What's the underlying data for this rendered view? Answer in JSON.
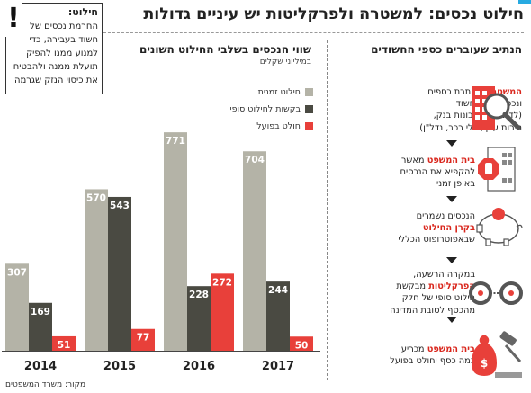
{
  "title": "חילוט נכסים: למשטרה ולפרקליטות יש עיניים גדולות",
  "note": {
    "label": "חילוט:",
    "text_lines": [
      "החרמת נכסים של",
      "חשוד בעבירה, כדי",
      "למנוע ממנו להפיק",
      "תועלת ממנה ולהבטיח",
      "את כיסוי הנזק שגרמה"
    ]
  },
  "flow": {
    "title": "הנתיב שעוברים כספי החשודים",
    "steps": [
      {
        "lines": [
          [
            {
              "t": "המשטרה",
              "b": true
            },
            {
              "t": " מאתרת כספים"
            }
          ],
          [
            {
              "t": "ונכסים של החשוד"
            }
          ],
          [
            {
              "t": "(לדוגמה: חשבונות בנק,"
            }
          ],
          [
            {
              "t": "ניירות ערך, כלי רכב, נדל\"ן)"
            }
          ]
        ],
        "icon": "building-magnifier-icon"
      },
      {
        "lines": [
          [
            {
              "t": "בית המשפט",
              "b": true
            },
            {
              "t": " מאשר"
            }
          ],
          [
            {
              "t": "להקפיא את הנכסים"
            }
          ],
          [
            {
              "t": "באופן זמני"
            }
          ]
        ],
        "icon": "stop-hand-icon"
      },
      {
        "lines": [
          [
            {
              "t": "הנכסים נשמרים"
            }
          ],
          [
            {
              "t": "בקרן החילוט",
              "b": true
            }
          ],
          [
            {
              "t": "שבאפוטרופוס הכללי"
            }
          ]
        ],
        "icon": "piggy-bank-icon"
      },
      {
        "lines": [
          [
            {
              "t": "במקרה הרשעה,"
            }
          ],
          [
            {
              "t": "הפרקליטות",
              "b": true
            },
            {
              "t": " מבקשת"
            }
          ],
          [
            {
              "t": "חילוט סופי של חלק"
            }
          ],
          [
            {
              "t": "מהכסף לטובת המדינה"
            }
          ]
        ],
        "icon": "handcuffs-icon"
      },
      {
        "lines": [
          [
            {
              "t": "בית המשפט",
              "b": true
            },
            {
              "t": " מכריע"
            }
          ],
          [
            {
              "t": "כמה כסף יחולט בפועל"
            }
          ]
        ],
        "icon": "gavel-moneybag-icon"
      }
    ]
  },
  "chart_data": {
    "type": "bar",
    "title": "שווי הנכסים בשלבי החילוט השונים",
    "unit": "במיליוני שקלים",
    "categories": [
      "2014",
      "2015",
      "2016",
      "2017"
    ],
    "series": [
      {
        "name": "חילוט זמנית",
        "color": "#b4b3a7",
        "values": [
          307,
          570,
          771,
          704
        ]
      },
      {
        "name": "בקשות לחילוט סופי",
        "color": "#4a4a42",
        "values": [
          169,
          543,
          228,
          244
        ]
      },
      {
        "name": "חולט בפועל",
        "color": "#e8403a",
        "values": [
          51,
          77,
          272,
          50
        ]
      }
    ],
    "ylim": [
      0,
      800
    ]
  },
  "source": "מקור: משרד המשפטים"
}
